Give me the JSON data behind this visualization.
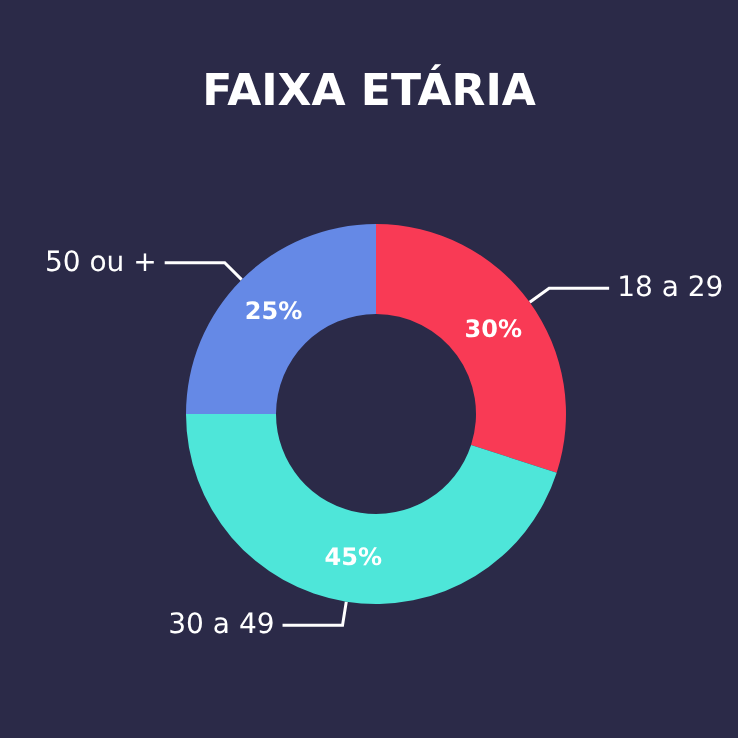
{
  "chart_data": {
    "type": "donut",
    "title": "FAIXA ETÁRIA",
    "categories": [
      "18 a 29",
      "30 a 49",
      "50 ou +"
    ],
    "values": [
      30,
      45,
      25
    ],
    "colors": [
      "#f93a55",
      "#4ee6d9",
      "#6589e6"
    ],
    "value_labels": [
      "30%",
      "45%",
      "25%"
    ],
    "legend": false
  }
}
